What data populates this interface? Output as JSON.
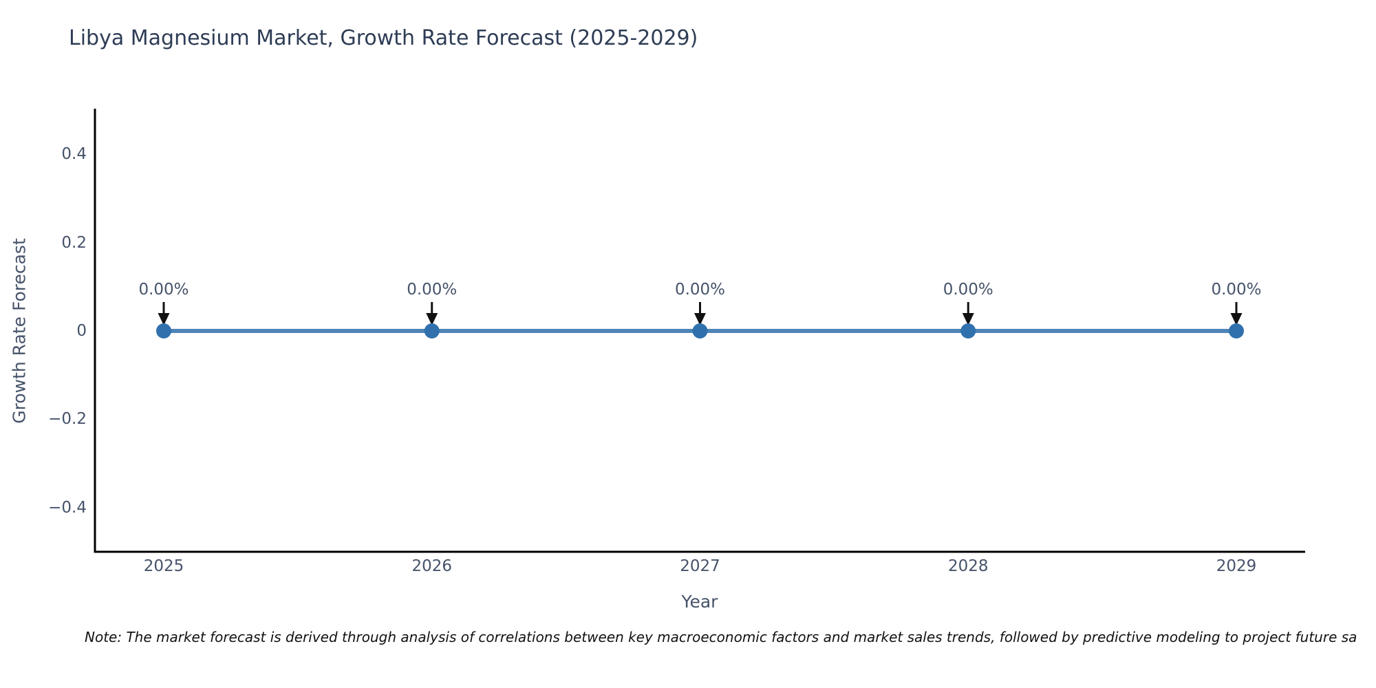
{
  "title": "Libya Magnesium Market, Growth Rate Forecast (2025-2029)",
  "note": "Note: The market forecast is derived through analysis of correlations between key macroeconomic factors and market sales trends, followed by predictive modeling to project future sa",
  "chart_data": {
    "type": "line",
    "title": "Libya Magnesium Market, Growth Rate Forecast (2025-2029)",
    "x": [
      "2025",
      "2026",
      "2027",
      "2028",
      "2029"
    ],
    "series": [
      {
        "name": "Growth Rate Forecast",
        "values": [
          0,
          0,
          0,
          0,
          0
        ],
        "point_labels": [
          "0.00%",
          "0.00%",
          "0.00%",
          "0.00%",
          "0.00%"
        ]
      }
    ],
    "xlabel": "Year",
    "ylabel": "Growth Rate Forecast",
    "ylim": [
      -0.5,
      0.5
    ],
    "yticks": [
      0.4,
      0.2,
      0,
      -0.2,
      -0.4
    ],
    "grid": false,
    "legend": "none",
    "annotations_style": "value label with black arrow pointing down at each marker",
    "colors": {
      "line": "#4e84b8",
      "marker": "#3070ad",
      "axis": "#000000",
      "tick_text": "#46536a",
      "title_text": "#2e3c55",
      "arrow": "#111111"
    }
  }
}
